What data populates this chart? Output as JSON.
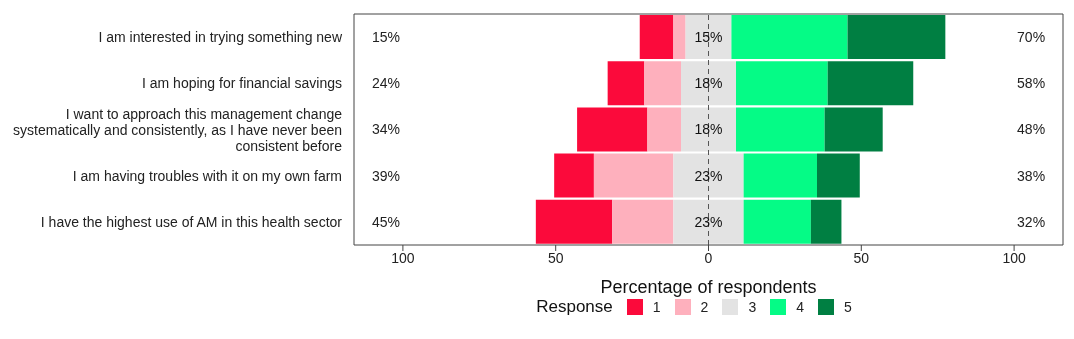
{
  "chart_data": {
    "type": "bar",
    "orientation": "horizontal",
    "xlabel": "Percentage of respondents",
    "legend_title": "Response",
    "legend": "bottom",
    "categories": [
      "I am interested in trying something new",
      "I am hoping for financial savings",
      "I want to approach this management change systematically and consistently, as I have never been consistent before",
      "I am having troubles with it on my own farm",
      "I have the highest use of AM in this health sector"
    ],
    "xlim": [
      -116,
      116
    ],
    "xticks": [
      {
        "value": -100,
        "label": "100"
      },
      {
        "value": -50,
        "label": "50"
      },
      0,
      50,
      100
    ],
    "series": [
      {
        "name": "1",
        "color": "#fb0a3b",
        "base": [
          -22.5,
          -33,
          -43,
          -50.5,
          -56.5
        ],
        "values": [
          11,
          12,
          23,
          13,
          25
        ]
      },
      {
        "name": "2",
        "color": "#feb0bd",
        "base": [
          -11.5,
          -21,
          -20,
          -37.5,
          -31.5
        ],
        "values": [
          4,
          12,
          11,
          26,
          20
        ]
      },
      {
        "name": "3",
        "color": "#e3e3e3",
        "base": [
          -7.5,
          -9,
          -9,
          -11.5,
          -11.5
        ],
        "values": [
          15,
          18,
          18,
          23,
          23
        ],
        "value_labels": [
          "15%",
          "18%",
          "18%",
          "23%",
          "23%"
        ]
      },
      {
        "name": "4",
        "color": "#05fb86",
        "base": [
          7.5,
          9,
          9,
          11.5,
          11.5
        ],
        "values": [
          38,
          30,
          29,
          24,
          22
        ]
      },
      {
        "name": "5",
        "color": "#007f42",
        "base": [
          45.5,
          39,
          38,
          35.5,
          33.5
        ],
        "values": [
          32,
          28,
          19,
          14,
          10
        ]
      }
    ],
    "annotations": [
      "15%",
      "24%",
      "34%",
      "39%",
      "45%",
      "70%",
      "58%",
      "48%",
      "38%",
      "32%"
    ],
    "ref_lines": [
      {
        "axis": "x",
        "value": 0,
        "color": "#555555",
        "line_style": "dashed"
      }
    ]
  }
}
